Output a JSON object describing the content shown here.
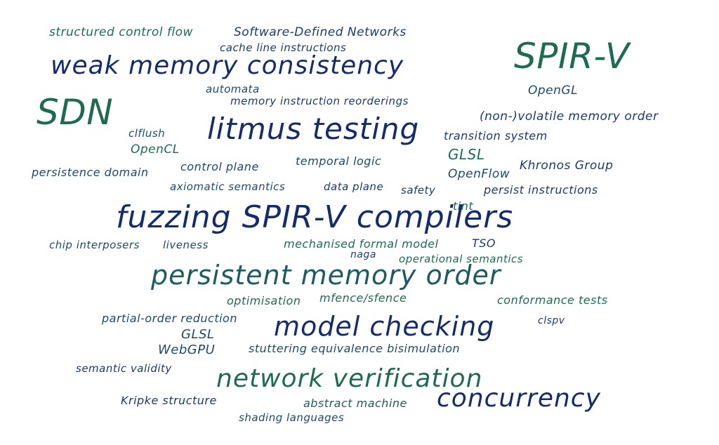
{
  "words": [
    {
      "text": "structured control flow",
      "color": "#1e6b52"
    },
    {
      "text": "Software-Defined Networks",
      "color": "#1b3a6e"
    },
    {
      "text": "cache line instructions",
      "color": "#1b3a6e"
    },
    {
      "text": "weak memory consistency",
      "color": "#142c6b"
    },
    {
      "text": "SPIR-V",
      "color": "#1e6b52"
    },
    {
      "text": "automata",
      "color": "#1b4a6e"
    },
    {
      "text": "OpenGL",
      "color": "#1b4a6e"
    },
    {
      "text": "memory instruction reorderings",
      "color": "#1b3a6e"
    },
    {
      "text": "SDN",
      "color": "#1e6b52"
    },
    {
      "text": "(non-)volatile memory order",
      "color": "#1b3a6e"
    },
    {
      "text": "litmus testing",
      "color": "#142c6b"
    },
    {
      "text": "clflush",
      "color": "#1b4a6e"
    },
    {
      "text": "transition system",
      "color": "#1b3a6e"
    },
    {
      "text": "OpenCL",
      "color": "#1e6b52"
    },
    {
      "text": "GLSL",
      "color": "#1e6b52"
    },
    {
      "text": "temporal logic",
      "color": "#1b4a6e"
    },
    {
      "text": "control plane",
      "color": "#1b4a6e"
    },
    {
      "text": "Khronos Group",
      "color": "#1b3a6e"
    },
    {
      "text": "persistence domain",
      "color": "#1b4a6e"
    },
    {
      "text": "OpenFlow",
      "color": "#1b4a6e"
    },
    {
      "text": "axiomatic semantics",
      "color": "#1b4a6e"
    },
    {
      "text": "data plane",
      "color": "#1b3a6e"
    },
    {
      "text": "safety",
      "color": "#1b3a6e"
    },
    {
      "text": "persist instructions",
      "color": "#1b3a6e"
    },
    {
      "text": "tint",
      "color": "#1e6b52"
    },
    {
      "text": "fuzzing SPIR-V compilers",
      "color": "#142c6b"
    },
    {
      "text": "chip interposers",
      "color": "#1b4a6e"
    },
    {
      "text": "liveness",
      "color": "#1b4a6e"
    },
    {
      "text": "mechanised formal model",
      "color": "#1e6b52"
    },
    {
      "text": "TSO",
      "color": "#1b3a6e"
    },
    {
      "text": "naga",
      "color": "#1b3a6e"
    },
    {
      "text": "operational semantics",
      "color": "#1e6b52"
    },
    {
      "text": "persistent memory order",
      "color": "#1e5a62"
    },
    {
      "text": "optimisation",
      "color": "#1e6b52"
    },
    {
      "text": "mfence/sfence",
      "color": "#1e6b52"
    },
    {
      "text": "conformance tests",
      "color": "#1e6b52"
    },
    {
      "text": "partial-order reduction",
      "color": "#1b4a6e"
    },
    {
      "text": "model checking",
      "color": "#142c6b"
    },
    {
      "text": "clspv",
      "color": "#1b3a6e"
    },
    {
      "text": "GLSL",
      "color": "#1b4a6e"
    },
    {
      "text": "WebGPU",
      "color": "#1b4a6e"
    },
    {
      "text": "stuttering equivalence bisimulation",
      "color": "#1b4a6e"
    },
    {
      "text": "semantic validity",
      "color": "#1b3a6e"
    },
    {
      "text": "network verification",
      "color": "#1e6b52"
    },
    {
      "text": "Kripke structure",
      "color": "#1b3a6e"
    },
    {
      "text": "abstract machine",
      "color": "#1e5a62"
    },
    {
      "text": "concurrency",
      "color": "#142c6b"
    },
    {
      "text": "shading languages",
      "color": "#1b4a6e"
    }
  ]
}
